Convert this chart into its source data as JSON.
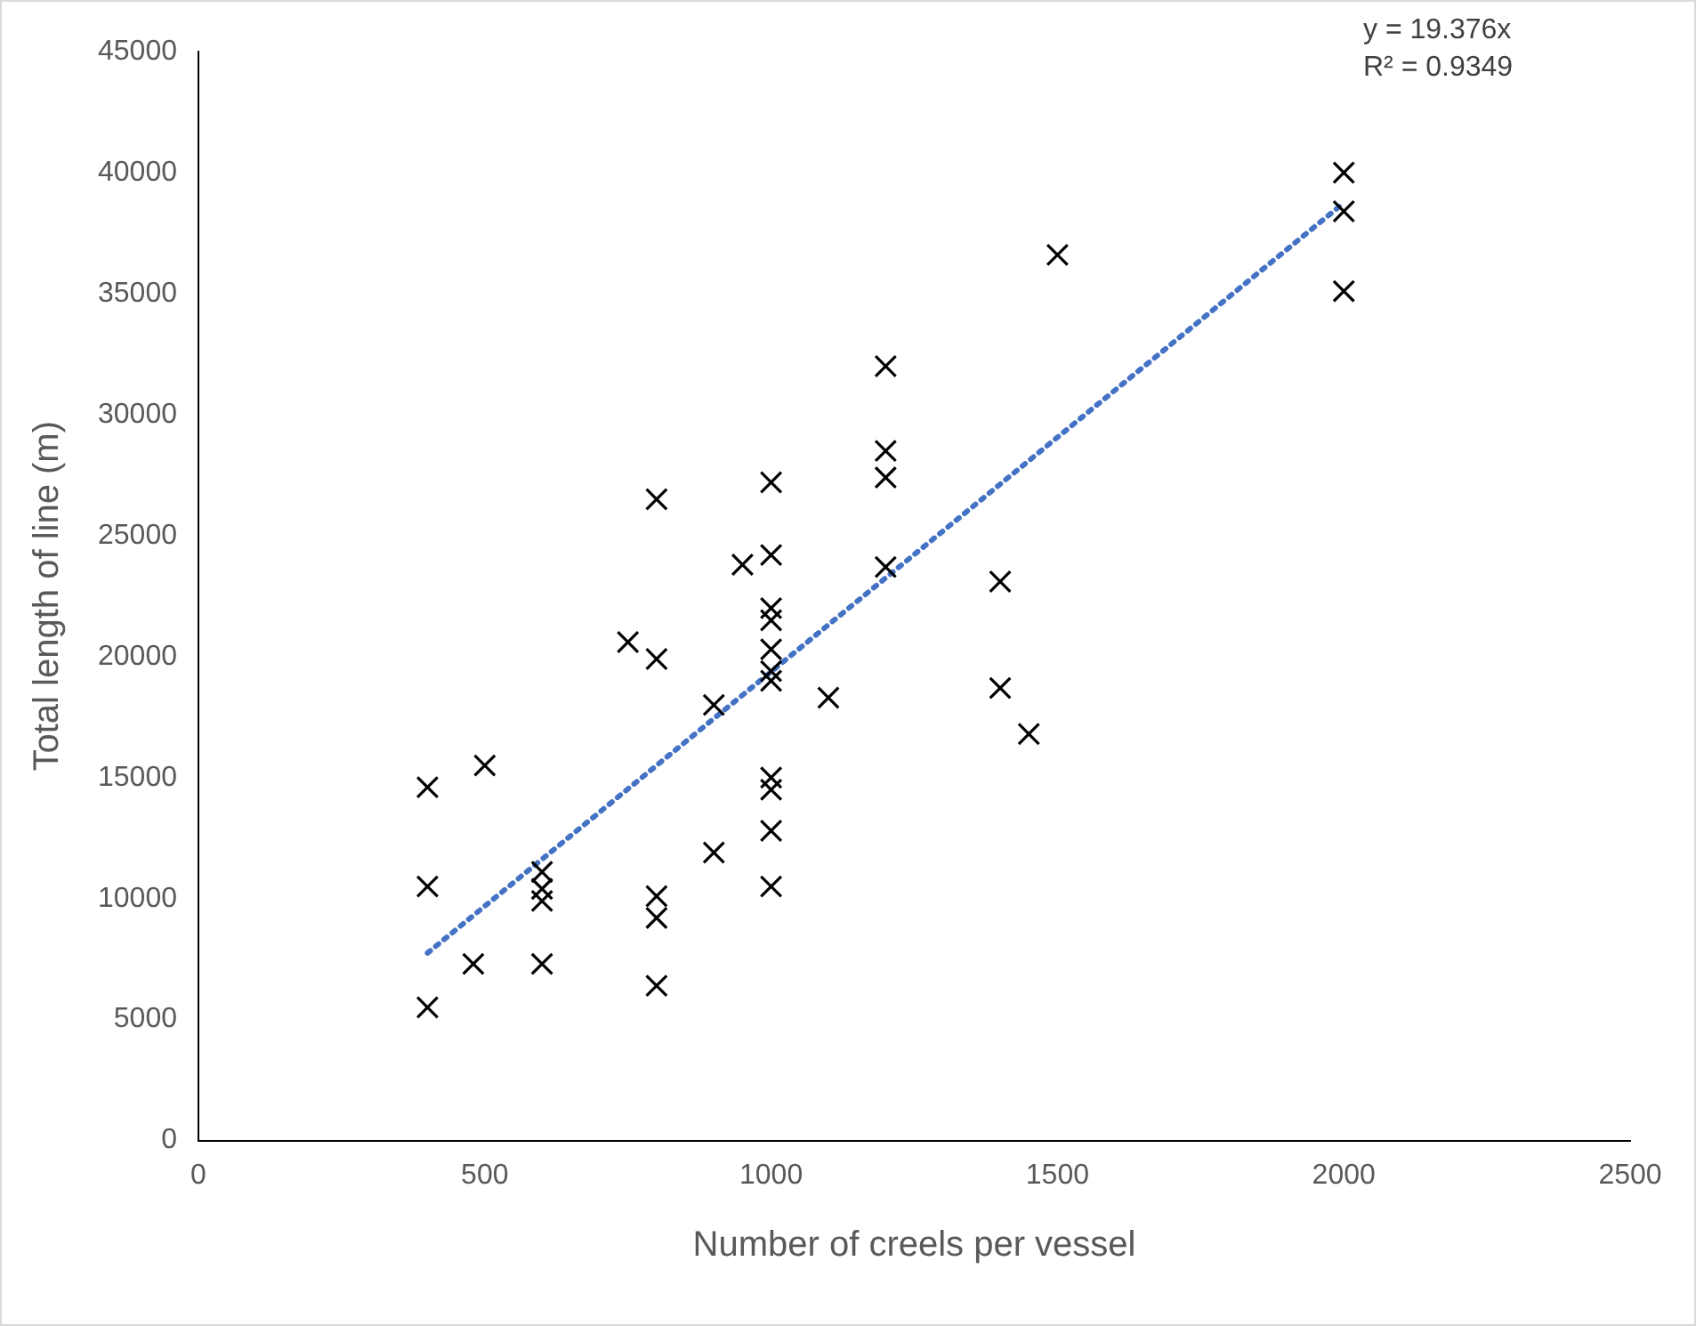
{
  "chart_data": {
    "type": "scatter",
    "xlabel": "Number of creels per vessel",
    "ylabel": "Total length of line (m)",
    "xlim": [
      0,
      2500
    ],
    "xticks": [
      0,
      500,
      1000,
      1500,
      2000,
      2500
    ],
    "ylim": [
      0,
      45000
    ],
    "yticks": [
      0,
      5000,
      10000,
      15000,
      20000,
      25000,
      30000,
      35000,
      40000,
      45000
    ],
    "grid": false,
    "legend": false,
    "marker": "cross",
    "series": [
      {
        "color": "#000000",
        "x": [
          400,
          400,
          400,
          480,
          500,
          600,
          600,
          600,
          600,
          750,
          800,
          800,
          800,
          800,
          800,
          900,
          900,
          950,
          1000,
          1000,
          1000,
          1000,
          1000,
          1000,
          1000,
          1000,
          1000,
          1000,
          1000,
          1100,
          1200,
          1200,
          1200,
          1200,
          1400,
          1400,
          1450,
          1500,
          2000,
          2000,
          2000
        ],
        "values": [
          14600,
          10500,
          5500,
          7300,
          15500,
          11100,
          10400,
          9900,
          7300,
          20600,
          26500,
          19900,
          10100,
          9200,
          6400,
          18000,
          11900,
          23800,
          27200,
          24200,
          22000,
          21500,
          20300,
          19400,
          19000,
          15000,
          14500,
          12800,
          10500,
          18300,
          32000,
          28500,
          27400,
          23700,
          23100,
          18700,
          16800,
          36600,
          40000,
          38400,
          35100
        ]
      },
      {
        "type": "line",
        "color": "#4472c4",
        "line_style": "dotted",
        "marker": "none",
        "x": [
          400,
          2000
        ],
        "values": [
          7750,
          38750
        ]
      }
    ],
    "annotations": [
      "y = 19.376x",
      "R² = 0.9349"
    ]
  }
}
